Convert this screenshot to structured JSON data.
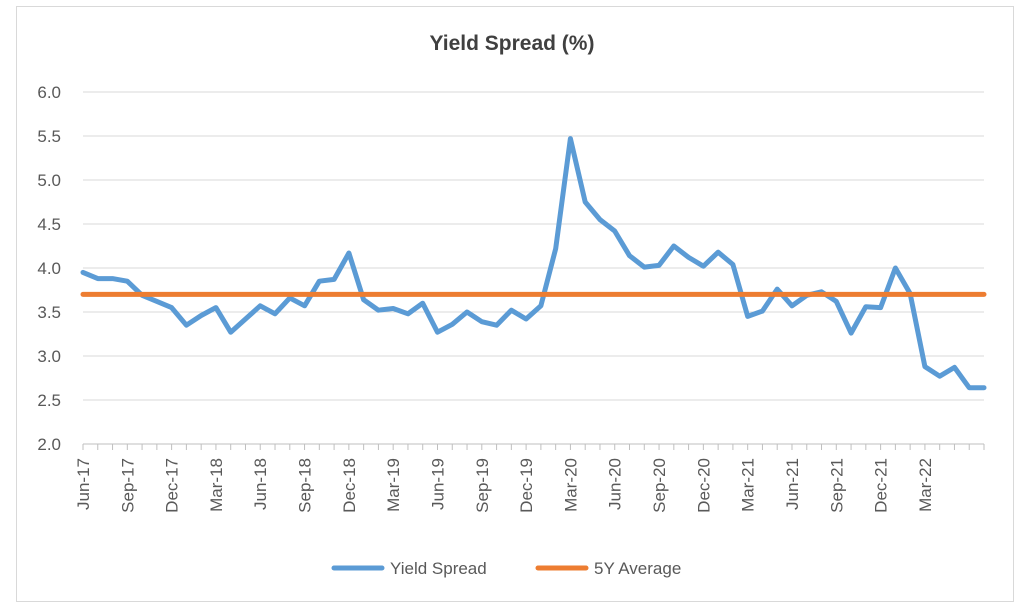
{
  "chart_data": {
    "type": "line",
    "title": "Yield Spread (%)",
    "xlabel": "",
    "ylabel": "",
    "ylim": [
      2.0,
      6.0
    ],
    "yticks": [
      "6.0",
      "5.5",
      "5.0",
      "4.5",
      "4.0",
      "3.5",
      "3.0",
      "2.5",
      "2.0"
    ],
    "grid": true,
    "legend_position": "bottom",
    "x": [
      "Jun-17",
      "Jul-17",
      "Aug-17",
      "Sep-17",
      "Oct-17",
      "Nov-17",
      "Dec-17",
      "Jan-18",
      "Feb-18",
      "Mar-18",
      "Apr-18",
      "May-18",
      "Jun-18",
      "Jul-18",
      "Aug-18",
      "Sep-18",
      "Oct-18",
      "Nov-18",
      "Dec-18",
      "Jan-19",
      "Feb-19",
      "Mar-19",
      "Apr-19",
      "May-19",
      "Jun-19",
      "Jul-19",
      "Aug-19",
      "Sep-19",
      "Oct-19",
      "Nov-19",
      "Dec-19",
      "Jan-20",
      "Feb-20",
      "Mar-20",
      "Apr-20",
      "May-20",
      "Jun-20",
      "Jul-20",
      "Aug-20",
      "Sep-20",
      "Oct-20",
      "Nov-20",
      "Dec-20",
      "Jan-21",
      "Feb-21",
      "Mar-21",
      "Apr-21",
      "May-21",
      "Jun-21",
      "Jul-21",
      "Aug-21",
      "Sep-21",
      "Oct-21",
      "Nov-21",
      "Dec-21",
      "Jan-22",
      "Feb-22",
      "Mar-22",
      "Apr-22",
      "May-22",
      "Jun-22",
      "Jul-22"
    ],
    "xtick_labels": [
      "Jun-17",
      "Sep-17",
      "Dec-17",
      "Mar-18",
      "Jun-18",
      "Sep-18",
      "Dec-18",
      "Mar-19",
      "Jun-19",
      "Sep-19",
      "Dec-19",
      "Mar-20",
      "Jun-20",
      "Sep-20",
      "Dec-20",
      "Mar-21",
      "Jun-21",
      "Sep-21",
      "Dec-21",
      "Mar-22"
    ],
    "series": [
      {
        "name": "Yield Spread",
        "color": "#5b9bd5",
        "values": [
          3.95,
          3.88,
          3.88,
          3.85,
          3.69,
          3.62,
          3.55,
          3.35,
          3.46,
          3.55,
          3.27,
          3.42,
          3.57,
          3.48,
          3.66,
          3.57,
          3.85,
          3.87,
          4.17,
          3.64,
          3.52,
          3.54,
          3.48,
          3.6,
          3.27,
          3.36,
          3.5,
          3.39,
          3.35,
          3.52,
          3.42,
          3.57,
          4.22,
          5.47,
          4.75,
          4.55,
          4.42,
          4.14,
          4.01,
          4.03,
          4.25,
          4.12,
          4.02,
          4.18,
          4.04,
          3.45,
          3.51,
          3.76,
          3.57,
          3.69,
          3.73,
          3.62,
          3.26,
          3.56,
          3.55,
          4.0,
          3.71,
          2.88,
          2.77,
          2.87,
          2.64,
          2.64
        ]
      },
      {
        "name": "5Y Average",
        "color": "#ed7d31",
        "values": [
          3.7,
          3.7,
          3.7,
          3.7,
          3.7,
          3.7,
          3.7,
          3.7,
          3.7,
          3.7,
          3.7,
          3.7,
          3.7,
          3.7,
          3.7,
          3.7,
          3.7,
          3.7,
          3.7,
          3.7,
          3.7,
          3.7,
          3.7,
          3.7,
          3.7,
          3.7,
          3.7,
          3.7,
          3.7,
          3.7,
          3.7,
          3.7,
          3.7,
          3.7,
          3.7,
          3.7,
          3.7,
          3.7,
          3.7,
          3.7,
          3.7,
          3.7,
          3.7,
          3.7,
          3.7,
          3.7,
          3.7,
          3.7,
          3.7,
          3.7,
          3.7,
          3.7,
          3.7,
          3.7,
          3.7,
          3.7,
          3.7,
          3.7,
          3.7,
          3.7,
          3.7,
          3.7
        ]
      }
    ]
  }
}
